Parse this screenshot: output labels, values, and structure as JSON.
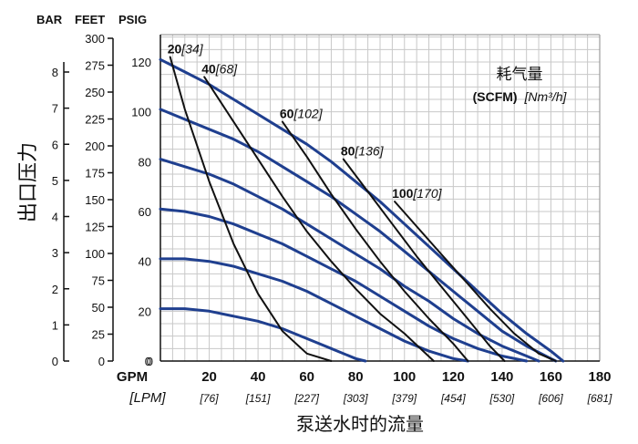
{
  "headers": {
    "bar": "BAR",
    "feet": "FEET",
    "psig": "PSIG"
  },
  "y_title": "出口压力",
  "x_title": "泵送水时的流量",
  "gpm_label": "GPM",
  "lpm_label": "[LPM]",
  "legend": {
    "title": "耗气量",
    "units_bold": "(SCFM)",
    "units_italic": "[Nm³/h]"
  },
  "colors": {
    "pressure_curve": "#1f3f8f",
    "air_curve": "#111111",
    "grid": "#c8c8c8"
  },
  "chart_data": {
    "type": "line",
    "xlabel": "泵送水时的流量",
    "ylabel": "出口压力",
    "x_ticks": [
      "0",
      "20",
      "40",
      "60",
      "80",
      "100",
      "120",
      "140",
      "160",
      "180"
    ],
    "lpm_ticks": [
      "[76]",
      "[151]",
      "[227]",
      "[303]",
      "[379]",
      "[454]",
      "[530]",
      "[606]",
      "[681]"
    ],
    "psig_ticks": [
      "0",
      "20",
      "40",
      "60",
      "80",
      "100",
      "120"
    ],
    "feet_ticks": [
      "0",
      "25",
      "50",
      "75",
      "100",
      "125",
      "150",
      "175",
      "200",
      "225",
      "250",
      "275",
      "300"
    ],
    "bar_ticks": [
      "0",
      "1",
      "2",
      "3",
      "4",
      "5",
      "6",
      "7",
      "8"
    ],
    "xlim": [
      0,
      180
    ],
    "ylim": [
      0,
      130
    ],
    "grid": true,
    "series": [
      {
        "x": [
          0,
          10,
          20,
          30,
          40,
          50,
          60,
          70,
          80,
          90,
          100,
          110,
          120,
          130,
          140,
          150,
          160,
          165
        ],
        "y": [
          121,
          116,
          111,
          105,
          99,
          93,
          87,
          80,
          72,
          64,
          55,
          46,
          37,
          28,
          19,
          11,
          4,
          0
        ]
      },
      {
        "x": [
          0,
          10,
          20,
          30,
          40,
          50,
          60,
          70,
          80,
          90,
          100,
          110,
          120,
          130,
          140,
          150,
          160,
          162
        ],
        "y": [
          101,
          97,
          93,
          89,
          84,
          78,
          72,
          66,
          59,
          52,
          44,
          36,
          28,
          20,
          12,
          6,
          1,
          0
        ]
      },
      {
        "x": [
          0,
          10,
          20,
          30,
          40,
          50,
          60,
          70,
          80,
          90,
          100,
          110,
          120,
          130,
          140,
          150,
          155
        ],
        "y": [
          81,
          78,
          75,
          71,
          66,
          61,
          55,
          49,
          43,
          37,
          30,
          24,
          17,
          11,
          6,
          2,
          0
        ]
      },
      {
        "x": [
          0,
          10,
          20,
          30,
          40,
          50,
          60,
          70,
          80,
          90,
          100,
          110,
          120,
          130,
          140,
          150
        ],
        "y": [
          61,
          60,
          58,
          55,
          51,
          47,
          42,
          37,
          32,
          26,
          20,
          14,
          9,
          5,
          2,
          0
        ]
      },
      {
        "x": [
          0,
          10,
          20,
          30,
          40,
          50,
          60,
          70,
          80,
          90,
          100,
          110,
          120,
          126
        ],
        "y": [
          41,
          41,
          40,
          38,
          35,
          32,
          28,
          23,
          18,
          13,
          8,
          4,
          1,
          0
        ]
      },
      {
        "x": [
          0,
          10,
          20,
          30,
          40,
          50,
          60,
          70,
          80,
          84
        ],
        "y": [
          21,
          21,
          20,
          18,
          16,
          13,
          9,
          5,
          1,
          0
        ]
      },
      {
        "name": "20[34]",
        "x": [
          4,
          10,
          20,
          30,
          40,
          50,
          60,
          70
        ],
        "y": [
          122,
          101,
          72,
          47,
          27,
          12,
          3,
          0
        ]
      },
      {
        "name": "40[68]",
        "x": [
          18,
          30,
          40,
          50,
          60,
          70,
          80,
          90,
          100,
          112
        ],
        "y": [
          114,
          96,
          81,
          66,
          52,
          40,
          29,
          19,
          11,
          0
        ]
      },
      {
        "name": "60[102]",
        "x": [
          50,
          60,
          70,
          80,
          90,
          100,
          110,
          120,
          126
        ],
        "y": [
          96,
          82,
          67,
          53,
          40,
          28,
          17,
          7,
          0
        ]
      },
      {
        "name": "80[136]",
        "x": [
          75,
          85,
          95,
          105,
          115,
          125,
          135,
          141
        ],
        "y": [
          81,
          68,
          55,
          42,
          30,
          18,
          6,
          0
        ]
      },
      {
        "name": "100[170]",
        "x": [
          96,
          105,
          115,
          125,
          135,
          145,
          155,
          162
        ],
        "y": [
          64,
          54,
          43,
          32,
          21,
          11,
          3,
          0
        ]
      }
    ]
  }
}
